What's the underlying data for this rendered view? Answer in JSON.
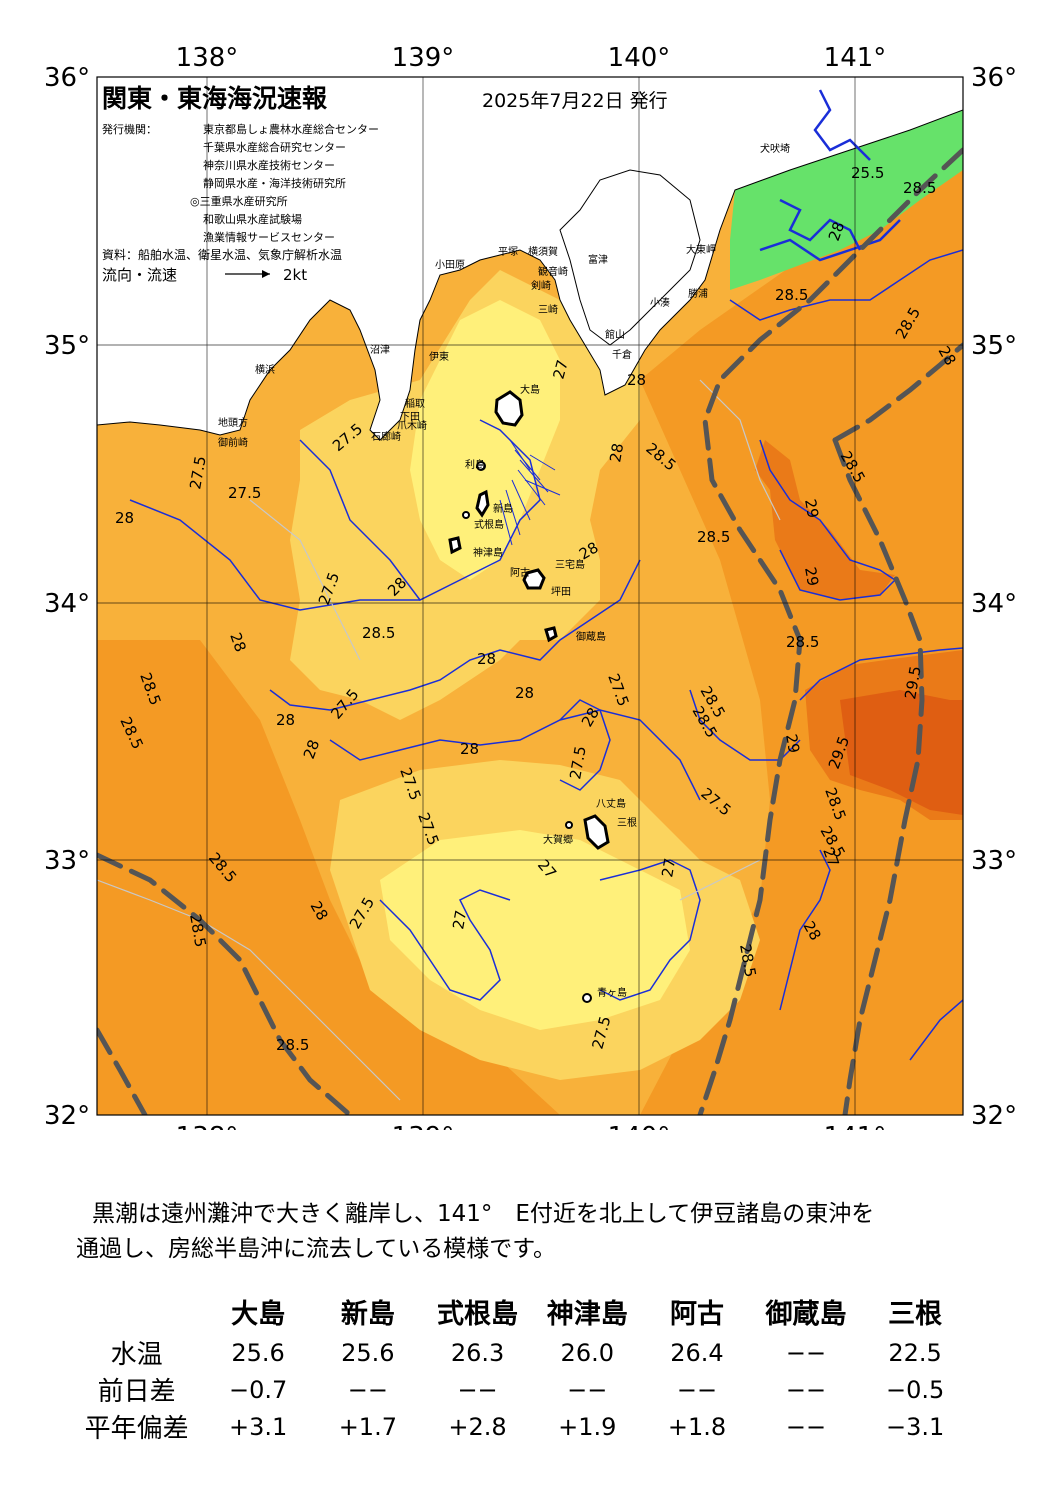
{
  "header": {
    "title": "関東・東海海況速報",
    "date": "2025年7月22日 発行",
    "issuer_label": "発行機関：",
    "issuers": [
      "東京都島しょ農林水産総合センター",
      "千葉県水産総合研究センター",
      "神奈川県水産技術センター",
      "静岡県水産・海洋技術研究所",
      "◎三重県水産研究所",
      "和歌山県水産試験場",
      "漁業情報サービスセンター"
    ],
    "source": "資料：船舶水温、衛星水温、気象庁解析水温",
    "legend_label": "流向・流速",
    "legend_scale": "2kt"
  },
  "map": {
    "lon_labels": [
      "138°",
      "139°",
      "140°",
      "141°"
    ],
    "lat_labels": [
      "36°",
      "35°",
      "34°",
      "33°",
      "32°"
    ],
    "colors": {
      "land": "#ffffff",
      "t_below_25_5": "#66e26a",
      "t_25_5_27": "#7fd87f",
      "t_27_27_5": "#fff07a",
      "t_27_5_28": "#fbd45e",
      "t_28_28_5": "#f8b13a",
      "t_28_5_29": "#f49a24",
      "t_29_29_5": "#ea7a18",
      "t_above_29_5": "#df5e12",
      "isotherm_blue": "#1a2ed8",
      "isotherm_gray": "#c8c8c8",
      "kuroshio_axis": "#555555",
      "grid": "#000000"
    },
    "place_names": [
      "横浜",
      "小田原",
      "平塚",
      "横須賀",
      "富津",
      "観音崎",
      "剣崎",
      "三崎",
      "館山",
      "千倉",
      "小湊",
      "勝浦",
      "大東岬",
      "犬吠埼",
      "沼津",
      "伊東",
      "稲取",
      "下田",
      "石廊崎",
      "爪木崎",
      "御前崎",
      "地頭方",
      "大島",
      "利島",
      "新島",
      "式根島",
      "神津島",
      "三宅島",
      "阿古",
      "坪田",
      "御蔵島",
      "八丈島",
      "三根",
      "大賀郷",
      "青ヶ島"
    ],
    "isotherm_labels": [
      "25.5",
      "28.5",
      "28",
      "28.5",
      "28.5",
      "28",
      "27",
      "28",
      "27.5",
      "27.5",
      "28",
      "28.5",
      "28",
      "28.5",
      "29",
      "29",
      "28.5",
      "27.5",
      "28",
      "28",
      "28.5",
      "28",
      "28",
      "27.5",
      "28.5",
      "28.5",
      "28.5",
      "28",
      "28.5",
      "27.5",
      "28",
      "27.5",
      "27.5",
      "28",
      "27.5",
      "28",
      "28.5",
      "29",
      "29.5",
      "29.5",
      "28.5",
      "28",
      "28.5",
      "27",
      "27.5",
      "27",
      "28",
      "28.5",
      "27.5",
      "27",
      "27",
      "27.5",
      "27.5",
      "28",
      "28.5",
      "28.5",
      "28.5"
    ]
  },
  "narrative": [
    "黒潮は遠州灘沖で大きく離岸し、141°　E付近を北上して伊豆諸島の東沖を",
    "通過し、房総半島沖に流去している模様です。"
  ],
  "observations": {
    "stations": [
      "大島",
      "新島",
      "式根島",
      "神津島",
      "阿古",
      "御蔵島",
      "三根"
    ],
    "rows": [
      {
        "label": "水温",
        "values": [
          "25.6",
          "25.6",
          "26.3",
          "26.0",
          "26.4",
          "−−",
          "22.5"
        ]
      },
      {
        "label": "前日差",
        "values": [
          "−0.7",
          "−−",
          "−−",
          "−−",
          "−−",
          "−−",
          "−0.5"
        ]
      },
      {
        "label": "平年偏差",
        "values": [
          "+3.1",
          "+1.7",
          "+2.8",
          "+1.9",
          "+1.8",
          "−−",
          "−3.1"
        ]
      }
    ]
  }
}
